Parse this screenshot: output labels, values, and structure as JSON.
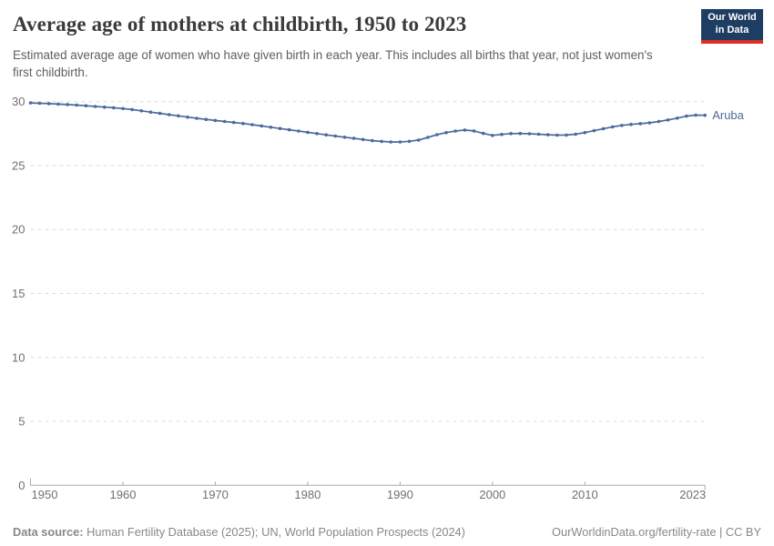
{
  "header": {
    "title": "Average age of mothers at childbirth, 1950 to 2023",
    "subtitle": "Estimated average age of women who have given birth in each year. This includes all births that year, not just women's first childbirth.",
    "logo": {
      "line1": "Our World",
      "line2": "in Data"
    }
  },
  "chart_data": {
    "type": "line",
    "title": "Average age of mothers at childbirth, 1950 to 2023",
    "xlabel": "",
    "ylabel": "",
    "xlim": [
      1950,
      2023
    ],
    "ylim": [
      0,
      30
    ],
    "xticks": [
      1950,
      1960,
      1970,
      1980,
      1990,
      2000,
      2010,
      2023
    ],
    "yticks": [
      0,
      5,
      10,
      15,
      20,
      25,
      30
    ],
    "grid": "horizontal-dashed",
    "legend_position": "end-of-line-label",
    "series": [
      {
        "name": "Aruba",
        "color": "#4C6A9C",
        "x": [
          1950,
          1951,
          1952,
          1953,
          1954,
          1955,
          1956,
          1957,
          1958,
          1959,
          1960,
          1961,
          1962,
          1963,
          1964,
          1965,
          1966,
          1967,
          1968,
          1969,
          1970,
          1971,
          1972,
          1973,
          1974,
          1975,
          1976,
          1977,
          1978,
          1979,
          1980,
          1981,
          1982,
          1983,
          1984,
          1985,
          1986,
          1987,
          1988,
          1989,
          1990,
          1991,
          1992,
          1993,
          1994,
          1995,
          1996,
          1997,
          1998,
          1999,
          2000,
          2001,
          2002,
          2003,
          2004,
          2005,
          2006,
          2007,
          2008,
          2009,
          2010,
          2011,
          2012,
          2013,
          2014,
          2015,
          2016,
          2017,
          2018,
          2019,
          2020,
          2021,
          2022,
          2023
        ],
        "values": [
          29.9,
          29.87,
          29.84,
          29.81,
          29.77,
          29.73,
          29.68,
          29.62,
          29.57,
          29.52,
          29.46,
          29.38,
          29.28,
          29.18,
          29.08,
          28.98,
          28.89,
          28.79,
          28.7,
          28.61,
          28.53,
          28.45,
          28.37,
          28.29,
          28.2,
          28.1,
          28.0,
          27.9,
          27.8,
          27.7,
          27.6,
          27.5,
          27.4,
          27.31,
          27.22,
          27.13,
          27.04,
          26.95,
          26.89,
          26.85,
          26.85,
          26.9,
          27.0,
          27.2,
          27.42,
          27.58,
          27.7,
          27.78,
          27.71,
          27.52,
          27.36,
          27.44,
          27.5,
          27.51,
          27.49,
          27.45,
          27.41,
          27.38,
          27.39,
          27.45,
          27.58,
          27.73,
          27.89,
          28.03,
          28.14,
          28.22,
          28.28,
          28.34,
          28.45,
          28.57,
          28.71,
          28.87,
          28.95,
          28.93
        ]
      }
    ],
    "colors": {
      "line": "#4C6A9C",
      "grid": "#dcdcdc",
      "axis": "#a8a8a8",
      "tick_text": "#707070",
      "entity_label": "#4C6A9C"
    }
  },
  "footer": {
    "datasource_label": "Data source:",
    "datasource_text": " Human Fertility Database (2025); UN, World Population Prospects (2024)",
    "credit": "OurWorldinData.org/fertility-rate | CC BY"
  }
}
